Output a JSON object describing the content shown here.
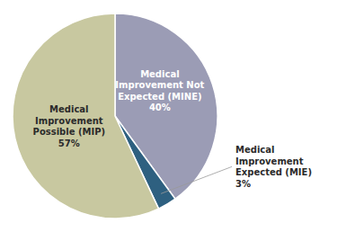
{
  "chart_data": {
    "type": "pie",
    "categories": [
      "Medical\nImprovement Not\nExpected (MINE)",
      "Medical\nImprovement\nExpected (MIE)",
      "Medical\nImprovement\nPossible (MIP)"
    ],
    "values": [
      40,
      3,
      57
    ],
    "value_labels": [
      "40%",
      "3%",
      "57%"
    ],
    "colors": [
      "#9b9cb5",
      "#2e6080",
      "#c8c8a0"
    ],
    "data_labels": true
  }
}
